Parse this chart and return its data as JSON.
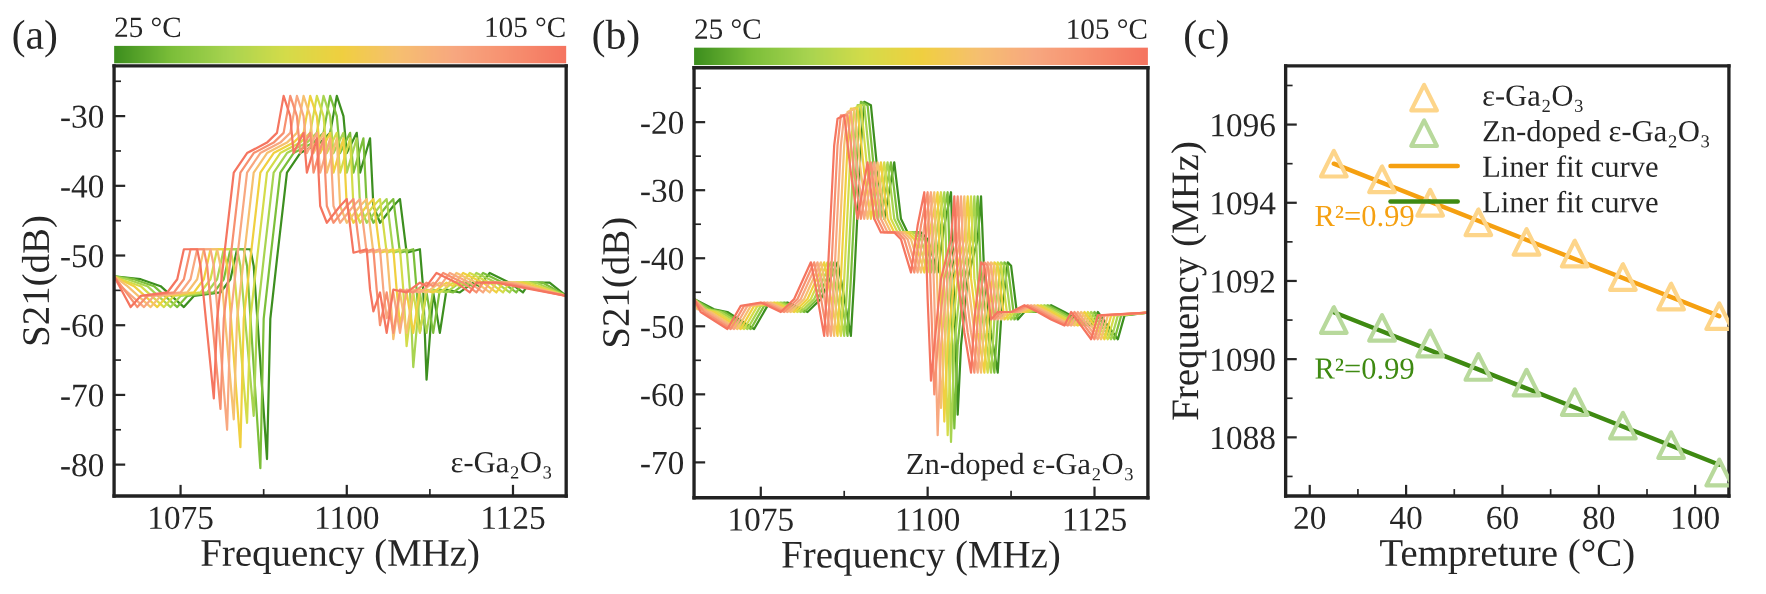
{
  "chart_data": [
    {
      "type": "line",
      "title": "(a)",
      "xlabel": "Frequency (MHz)",
      "ylabel": "S21(dB)",
      "xlim": [
        1065,
        1133
      ],
      "xticks": [
        1075,
        {
          "value": 1087.5,
          "label": null
        },
        1100,
        {
          "value": 1112.5,
          "label": null
        },
        1125
      ],
      "ylim": [
        -84.5,
        -22.8
      ],
      "yticks": [
        -80,
        {
          "value": -75,
          "label": null
        },
        -70,
        {
          "value": -65,
          "label": null
        },
        -60,
        {
          "value": -55,
          "label": null
        },
        -50,
        {
          "value": -45,
          "label": null
        },
        -40,
        {
          "value": -35,
          "label": null
        },
        -30,
        {
          "value": -25,
          "label": null
        }
      ],
      "annotations": [
        "25 °C",
        "105 °C",
        "ε-Ga₂O₃"
      ],
      "series": [
        {
          "color": "#3d8f1f",
          "x": [
            1065,
            1069,
            1072,
            1075.5,
            1077,
            1081,
            1082.5,
            1083.5,
            1085.5,
            1086,
            1088,
            1088.5,
            1089.5,
            1091,
            1093,
            1096,
            1097.5,
            1098.5,
            1099.5,
            1100,
            1101.5,
            1102,
            1103.5,
            1104,
            1105,
            1107,
            1108,
            1109,
            1111,
            1111.5,
            1112,
            1113,
            1114,
            1115,
            1117,
            1119,
            1120,
            1121.5,
            1124.5,
            1126.5,
            1127.5,
            1130.5,
            1133
          ],
          "values": [
            -53,
            -53.4,
            -54.4,
            -57.4,
            -55.8,
            -55.3,
            -53.4,
            -49.1,
            -49.1,
            -51.5,
            -79.2,
            -59.1,
            -50.5,
            -38.1,
            -35.3,
            -33.8,
            -32.4,
            -27.1,
            -30,
            -35.3,
            -32.4,
            -38.1,
            -33.2,
            -42.9,
            -45.3,
            -42.9,
            -41.9,
            -49.6,
            -49.1,
            -54.9,
            -67.8,
            -55.3,
            -61.1,
            -54.9,
            -55.3,
            -53.9,
            -54.4,
            -52.5,
            -53.9,
            -55.3,
            -53.9,
            -53.9,
            -55.8
          ]
        },
        {
          "color": "#7cbf3a",
          "x": [
            1065,
            1068,
            1071,
            1074.5,
            1076,
            1080,
            1081.5,
            1082.5,
            1084.5,
            1085,
            1087,
            1087.5,
            1088.5,
            1090,
            1092,
            1095,
            1096.5,
            1097.5,
            1098.5,
            1099,
            1100.5,
            1101,
            1102.5,
            1103,
            1104,
            1106,
            1107,
            1108,
            1110,
            1110.5,
            1111,
            1112,
            1113,
            1114,
            1116,
            1118,
            1119,
            1120.5,
            1123.5,
            1125.5,
            1126.5,
            1129.5,
            1133
          ],
          "values": [
            -53,
            -53.4,
            -54.4,
            -57.4,
            -55.8,
            -55.3,
            -53.4,
            -49.1,
            -49.1,
            -51.5,
            -80.5,
            -59.1,
            -50.5,
            -38.1,
            -35.3,
            -33.8,
            -32.4,
            -27.1,
            -30,
            -35.3,
            -32.4,
            -38.1,
            -33.2,
            -42.9,
            -45.3,
            -42.9,
            -41.9,
            -49.6,
            -49.1,
            -54.9,
            -61,
            -55.3,
            -61.1,
            -54.9,
            -55.3,
            -53.9,
            -54.4,
            -52.5,
            -53.9,
            -55.3,
            -53.9,
            -53.9,
            -55.8
          ]
        },
        {
          "color": "#a8d450",
          "x": [
            1065,
            1067,
            1070,
            1073.5,
            1075,
            1079,
            1080.5,
            1081.5,
            1083.5,
            1084,
            1086,
            1086.5,
            1087.5,
            1089,
            1091,
            1094,
            1095.5,
            1096.5,
            1097.5,
            1098,
            1099.5,
            1100,
            1101.5,
            1102,
            1103,
            1105,
            1106,
            1107,
            1109,
            1109.5,
            1110,
            1111,
            1112,
            1113,
            1115,
            1117,
            1118,
            1119.5,
            1122.5,
            1124.5,
            1125.5,
            1128.5,
            1133
          ],
          "values": [
            -53,
            -53.4,
            -54.4,
            -57.4,
            -55.8,
            -55.3,
            -53.4,
            -49.1,
            -49.1,
            -51.5,
            -73,
            -59.1,
            -50.5,
            -38.1,
            -35.3,
            -33.8,
            -32.4,
            -27.1,
            -30,
            -35.3,
            -32.4,
            -38.1,
            -33.2,
            -42.9,
            -45.3,
            -42.9,
            -41.9,
            -49.6,
            -49.1,
            -54.9,
            -66,
            -55.3,
            -61.1,
            -54.9,
            -55.3,
            -53.9,
            -54.4,
            -52.5,
            -53.9,
            -55.3,
            -53.9,
            -53.9,
            -55.8
          ]
        },
        {
          "color": "#d4dc4a",
          "x": [
            1065,
            1066,
            1069,
            1072.5,
            1074,
            1078,
            1079.5,
            1080.5,
            1082.5,
            1083,
            1085,
            1085.5,
            1086.5,
            1088,
            1090,
            1093,
            1094.5,
            1095.5,
            1096.5,
            1097,
            1098.5,
            1099,
            1100.5,
            1101,
            1102,
            1104,
            1105,
            1106,
            1108,
            1108.5,
            1109,
            1110,
            1111,
            1112,
            1114,
            1116,
            1117,
            1118.5,
            1121.5,
            1123.5,
            1124.5,
            1127.5,
            1133
          ],
          "values": [
            -53,
            -53.4,
            -54.4,
            -57.4,
            -55.8,
            -55.3,
            -53.4,
            -49.1,
            -49.1,
            -51.5,
            -74,
            -59.1,
            -50.5,
            -38.1,
            -35.3,
            -33.8,
            -32.4,
            -27.1,
            -30,
            -35.3,
            -32.4,
            -38.1,
            -33.2,
            -42.9,
            -45.3,
            -42.9,
            -41.9,
            -49.6,
            -49.1,
            -54.9,
            -63,
            -55.3,
            -61.1,
            -54.9,
            -55.3,
            -53.9,
            -54.4,
            -52.5,
            -53.9,
            -55.3,
            -53.9,
            -53.9,
            -55.8
          ]
        },
        {
          "color": "#f0d040",
          "x": [
            1065,
            1068,
            1071.5,
            1073,
            1077,
            1078.5,
            1079.5,
            1081.5,
            1082,
            1084,
            1084.5,
            1085.5,
            1087,
            1089,
            1092,
            1093.5,
            1094.5,
            1095.5,
            1096,
            1097.5,
            1098,
            1099.5,
            1100,
            1101,
            1103,
            1104,
            1105,
            1107,
            1107.5,
            1108,
            1109,
            1110,
            1111,
            1113,
            1115,
            1116,
            1117.5,
            1120.5,
            1122.5,
            1123.5,
            1126.5,
            1133
          ],
          "values": [
            -53,
            -54.4,
            -57.4,
            -55.8,
            -55.3,
            -53.4,
            -49.1,
            -49.1,
            -51.5,
            -77.5,
            -59.1,
            -50.5,
            -38.1,
            -35.3,
            -33.8,
            -32.4,
            -27.1,
            -30,
            -35.3,
            -32.4,
            -38.1,
            -33.2,
            -42.9,
            -45.3,
            -42.9,
            -41.9,
            -49.6,
            -49.1,
            -54.9,
            -60,
            -55.3,
            -61.1,
            -54.9,
            -55.3,
            -53.9,
            -54.4,
            -52.5,
            -53.9,
            -55.3,
            -53.9,
            -53.9,
            -55.8
          ]
        },
        {
          "color": "#f6c070",
          "x": [
            1065,
            1067,
            1070.5,
            1072,
            1076,
            1077.5,
            1078.5,
            1080.5,
            1081,
            1083,
            1083.5,
            1084.5,
            1086,
            1088,
            1091,
            1092.5,
            1093.5,
            1094.5,
            1095,
            1096.5,
            1097,
            1098.5,
            1099,
            1100,
            1102,
            1103,
            1104,
            1106,
            1106.5,
            1107,
            1108,
            1109,
            1110,
            1112,
            1114,
            1115,
            1116.5,
            1119.5,
            1121.5,
            1122.5,
            1125.5,
            1133
          ],
          "values": [
            -53,
            -54.4,
            -57.4,
            -55.8,
            -55.3,
            -53.4,
            -49.1,
            -49.1,
            -51.5,
            -73.5,
            -59.1,
            -50.5,
            -38.1,
            -35.3,
            -33.8,
            -32.4,
            -27.1,
            -30,
            -35.3,
            -32.4,
            -38.1,
            -33.2,
            -42.9,
            -45.3,
            -42.9,
            -41.9,
            -49.6,
            -49.1,
            -54.9,
            -62,
            -55.3,
            -61.1,
            -54.9,
            -55.3,
            -53.9,
            -54.4,
            -52.5,
            -53.9,
            -55.3,
            -53.9,
            -53.9,
            -55.8
          ]
        },
        {
          "color": "#f8a880",
          "x": [
            1065,
            1066,
            1069.5,
            1071,
            1075,
            1076.5,
            1077.5,
            1079.5,
            1080,
            1082,
            1082.5,
            1083.5,
            1085,
            1087,
            1090,
            1091.5,
            1092.5,
            1093.5,
            1094,
            1095.5,
            1096,
            1097.5,
            1098,
            1099,
            1101,
            1102,
            1103,
            1105,
            1105.5,
            1106,
            1107,
            1108,
            1109,
            1111,
            1113,
            1114,
            1115.5,
            1118.5,
            1120.5,
            1121.5,
            1124.5,
            1133
          ],
          "values": [
            -53,
            -54.4,
            -57.4,
            -55.8,
            -55.3,
            -53.4,
            -49.1,
            -49.1,
            -51.5,
            -75,
            -59.1,
            -50.5,
            -38.1,
            -35.3,
            -33.8,
            -32.4,
            -27.1,
            -30,
            -35.3,
            -32.4,
            -38.1,
            -33.2,
            -42.9,
            -45.3,
            -42.9,
            -41.9,
            -49.6,
            -49.1,
            -54.9,
            -59,
            -55.3,
            -61.1,
            -54.9,
            -55.3,
            -53.9,
            -54.4,
            -52.5,
            -53.9,
            -55.3,
            -53.9,
            -53.9,
            -55.8
          ]
        },
        {
          "color": "#f79070",
          "x": [
            1065,
            1068.5,
            1070,
            1074,
            1075.5,
            1076.5,
            1078.5,
            1079,
            1081,
            1081.5,
            1082.5,
            1084,
            1086,
            1089,
            1090.5,
            1091.5,
            1092.5,
            1093,
            1094.5,
            1095,
            1096.5,
            1097,
            1098,
            1100,
            1101,
            1102,
            1104,
            1104.5,
            1105,
            1106,
            1107,
            1108,
            1110,
            1112,
            1113,
            1114.5,
            1117.5,
            1119.5,
            1120.5,
            1123.5,
            1133
          ],
          "values": [
            -53,
            -57.4,
            -55.8,
            -55.3,
            -53.4,
            -49.1,
            -49.1,
            -51.5,
            -72,
            -59.1,
            -50.5,
            -38.1,
            -35.3,
            -33.8,
            -32.4,
            -27.1,
            -30,
            -35.3,
            -32.4,
            -38.1,
            -33.2,
            -42.9,
            -45.3,
            -42.9,
            -41.9,
            -49.6,
            -49.1,
            -54.9,
            -60,
            -55.3,
            -61.1,
            -54.9,
            -55.3,
            -53.9,
            -54.4,
            -52.5,
            -53.9,
            -55.3,
            -53.9,
            -53.9,
            -55.8
          ]
        },
        {
          "color": "#f57560",
          "x": [
            1065,
            1067.5,
            1069,
            1073,
            1074.5,
            1075.5,
            1077.5,
            1078,
            1080,
            1080.5,
            1081.5,
            1083,
            1085,
            1088,
            1089.5,
            1090.5,
            1091.5,
            1092,
            1093.5,
            1094,
            1095.5,
            1096,
            1097,
            1099,
            1100,
            1101,
            1103,
            1103.5,
            1104,
            1105,
            1106,
            1107,
            1109,
            1111,
            1112,
            1113.5,
            1116.5,
            1118.5,
            1119.5,
            1122.5,
            1133
          ],
          "values": [
            -53,
            -57.4,
            -55.8,
            -55.3,
            -53.4,
            -49.1,
            -49.1,
            -51.5,
            -70.5,
            -59.1,
            -50.5,
            -38.1,
            -35.3,
            -33.8,
            -32.4,
            -27.1,
            -30,
            -35.3,
            -32.4,
            -38.1,
            -33.2,
            -42.9,
            -45.3,
            -42.9,
            -41.9,
            -49.6,
            -49.1,
            -54.9,
            -58,
            -55.3,
            -61.1,
            -54.9,
            -55.3,
            -53.9,
            -54.4,
            -52.5,
            -53.9,
            -55.3,
            -53.9,
            -53.9,
            -55.8
          ]
        }
      ]
    },
    {
      "type": "line",
      "title": "(b)",
      "xlabel": "Frequency (MHz)",
      "ylabel": "S21(dB)",
      "xlim": [
        1065,
        1133
      ],
      "xticks": [
        1075,
        {
          "value": 1087.5,
          "label": null
        },
        1100,
        {
          "value": 1112.5,
          "label": null
        },
        1125
      ],
      "ylim": [
        -75.2,
        -12
      ],
      "yticks": [
        -70,
        {
          "value": -65,
          "label": null
        },
        -60,
        {
          "value": -55,
          "label": null
        },
        -50,
        {
          "value": -45,
          "label": null
        },
        -40,
        {
          "value": -35,
          "label": null
        },
        -30,
        {
          "value": -25,
          "label": null
        },
        -20,
        {
          "value": -15,
          "label": null
        }
      ],
      "annotations": [
        "25 °C",
        "105 °C",
        "Zn-doped ε-Ga₂O₃"
      ],
      "series": [
        {
          "color": "#3d8f1f",
          "x": [
            1065,
            1068,
            1070,
            1074,
            1076,
            1079,
            1082,
            1084,
            1086.5,
            1087,
            1088.5,
            1089,
            1090,
            1090.5,
            1091.5,
            1092.5,
            1093.5,
            1095,
            1096,
            1097,
            1099,
            1100,
            1101.5,
            1102.5,
            1103.5,
            1104,
            1104.5,
            1105,
            1106,
            1107.5,
            1108,
            1108.5,
            1109.5,
            1110.5,
            1111,
            1112,
            1112.5,
            1113.5,
            1114.5,
            1116.5,
            1118.5,
            1120.5,
            1122.5,
            1124.5,
            1125.5,
            1128.5,
            1129.5,
            1133
          ],
          "values": [
            -46,
            -47.5,
            -47.9,
            -50.4,
            -47,
            -46.5,
            -47.9,
            -46,
            -40.6,
            -43,
            -51.4,
            -43,
            -23.4,
            -17,
            -17.5,
            -27.4,
            -34.2,
            -25.9,
            -34.2,
            -36.2,
            -36.2,
            -37.2,
            -42.1,
            -35.2,
            -30.3,
            -46,
            -63,
            -52.8,
            -43,
            -37.2,
            -30.9,
            -43,
            -50.9,
            -56.8,
            -49,
            -40.6,
            -41.1,
            -49,
            -47.9,
            -47.9,
            -46.9,
            -47.9,
            -49,
            -49.9,
            -47.9,
            -51.9,
            -48.4,
            -48
          ]
        },
        {
          "color": "#7cbf3a",
          "x": [
            1065,
            1067.5,
            1069.5,
            1073.5,
            1075.5,
            1078.5,
            1081.5,
            1083.5,
            1086,
            1086.5,
            1088,
            1088.5,
            1089.5,
            1090,
            1091,
            1092,
            1093,
            1094.5,
            1095.5,
            1096.5,
            1098.5,
            1099.5,
            1101,
            1102,
            1103,
            1103.5,
            1104,
            1104.5,
            1105.5,
            1107,
            1107.5,
            1108,
            1109,
            1110,
            1110.5,
            1111.5,
            1112,
            1113,
            1114,
            1116,
            1118,
            1120,
            1122,
            1124,
            1125,
            1128,
            1129,
            1133
          ],
          "values": [
            -46,
            -47.5,
            -47.9,
            -50.4,
            -47,
            -46.5,
            -47.9,
            -46,
            -40.6,
            -43,
            -51.4,
            -43,
            -23.4,
            -17,
            -17.5,
            -27.4,
            -34.2,
            -25.9,
            -34.2,
            -36.2,
            -36.2,
            -37.2,
            -42.1,
            -35.2,
            -30.3,
            -46,
            -65,
            -52.8,
            -43,
            -37.2,
            -30.9,
            -43,
            -50.9,
            -56.8,
            -49,
            -40.6,
            -41.1,
            -49,
            -47.9,
            -47.9,
            -46.9,
            -47.9,
            -49,
            -49.9,
            -47.9,
            -51.9,
            -48.4,
            -48
          ]
        },
        {
          "color": "#a8d450",
          "x": [
            1065,
            1067,
            1069,
            1073,
            1075,
            1078,
            1081,
            1083,
            1085.5,
            1086,
            1087.5,
            1088,
            1089,
            1089.5,
            1090.5,
            1091.5,
            1092.5,
            1094,
            1095,
            1096,
            1098,
            1099,
            1100.5,
            1101.5,
            1102.5,
            1103,
            1103.5,
            1104,
            1105,
            1106.5,
            1107,
            1107.5,
            1108.5,
            1109.5,
            1110,
            1111,
            1111.5,
            1112.5,
            1113.5,
            1115.5,
            1117.5,
            1119.5,
            1121.5,
            1123.5,
            1124.5,
            1127.5,
            1128.5,
            1133
          ],
          "values": [
            -46,
            -47.5,
            -47.9,
            -50.4,
            -47,
            -46.5,
            -47.9,
            -46,
            -40.6,
            -43,
            -51.4,
            -43,
            -23.4,
            -17.5,
            -17.5,
            -27.4,
            -34.2,
            -25.9,
            -34.2,
            -36.2,
            -36.2,
            -37.2,
            -42.1,
            -35.2,
            -30.3,
            -46,
            -67,
            -52.8,
            -43,
            -37.2,
            -30.9,
            -43,
            -50.9,
            -56.8,
            -49,
            -40.6,
            -41.1,
            -49,
            -47.9,
            -47.9,
            -46.9,
            -47.9,
            -49,
            -49.9,
            -47.9,
            -51.9,
            -48.4,
            -48
          ]
        },
        {
          "color": "#d4dc4a",
          "x": [
            1065,
            1066.5,
            1068.5,
            1072.5,
            1074.5,
            1077.5,
            1080.5,
            1082.5,
            1085,
            1085.5,
            1087,
            1087.5,
            1088.5,
            1089,
            1090,
            1091,
            1092,
            1093.5,
            1094.5,
            1095.5,
            1097.5,
            1098.5,
            1100,
            1101,
            1102,
            1102.5,
            1103,
            1103.5,
            1104.5,
            1106,
            1106.5,
            1107,
            1108,
            1109,
            1109.5,
            1110.5,
            1111,
            1112,
            1113,
            1115,
            1117,
            1119,
            1121,
            1123,
            1124,
            1127,
            1128,
            1133
          ],
          "values": [
            -46,
            -47.5,
            -47.9,
            -50.4,
            -47,
            -46.5,
            -47.9,
            -46,
            -40.6,
            -43,
            -51.4,
            -43,
            -23.4,
            -18,
            -17.5,
            -27.4,
            -34.2,
            -25.9,
            -34.2,
            -36.2,
            -36.2,
            -37.2,
            -42.1,
            -35.2,
            -30.3,
            -46,
            -66,
            -52.8,
            -43,
            -37.2,
            -30.9,
            -43,
            -50.9,
            -56.8,
            -49,
            -40.6,
            -41.1,
            -49,
            -47.9,
            -47.9,
            -46.9,
            -47.9,
            -49,
            -49.9,
            -47.9,
            -51.9,
            -48.4,
            -48
          ]
        },
        {
          "color": "#f0d040",
          "x": [
            1065,
            1066,
            1068,
            1072,
            1074,
            1077,
            1080,
            1082,
            1084.5,
            1085,
            1086.5,
            1087,
            1088,
            1088.5,
            1089.5,
            1090.5,
            1091.5,
            1093,
            1094,
            1095,
            1097,
            1098,
            1099.5,
            1100.5,
            1101.5,
            1102,
            1102.5,
            1103,
            1104,
            1105.5,
            1106,
            1106.5,
            1107.5,
            1108.5,
            1109,
            1110,
            1110.5,
            1111.5,
            1112.5,
            1114.5,
            1116.5,
            1118.5,
            1120.5,
            1122.5,
            1123.5,
            1126.5,
            1127.5,
            1133
          ],
          "values": [
            -46,
            -47.5,
            -47.9,
            -50.4,
            -47,
            -46.5,
            -47.9,
            -46,
            -40.6,
            -43,
            -51.4,
            -43,
            -23.4,
            -18,
            -18,
            -27.4,
            -34.2,
            -25.9,
            -34.2,
            -36.2,
            -36.2,
            -37.2,
            -42.1,
            -35.2,
            -30.3,
            -46,
            -64,
            -52.8,
            -43,
            -37.2,
            -30.9,
            -43,
            -50.9,
            -56.8,
            -49,
            -40.6,
            -41.1,
            -49,
            -47.9,
            -47.9,
            -46.9,
            -47.9,
            -49,
            -49.9,
            -47.9,
            -51.9,
            -48.4,
            -48
          ]
        },
        {
          "color": "#f6c070",
          "x": [
            1065,
            1065.5,
            1067.5,
            1071.5,
            1073.5,
            1076.5,
            1079.5,
            1081.5,
            1084,
            1084.5,
            1086,
            1086.5,
            1087.5,
            1088,
            1089,
            1090,
            1091,
            1092.5,
            1093.5,
            1094.5,
            1096.5,
            1097.5,
            1099,
            1100,
            1101,
            1101.5,
            1102,
            1102.5,
            1103.5,
            1105,
            1105.5,
            1106,
            1107,
            1108,
            1108.5,
            1109.5,
            1110,
            1111,
            1112,
            1114,
            1116,
            1118,
            1120,
            1122,
            1123,
            1126,
            1127,
            1133
          ],
          "values": [
            -46,
            -47.5,
            -47.9,
            -50.4,
            -47,
            -46.5,
            -47.9,
            -46,
            -40.6,
            -43,
            -51.4,
            -43,
            -23.4,
            -18.5,
            -18,
            -27.4,
            -34.2,
            -25.9,
            -34.2,
            -36.2,
            -36.2,
            -37.2,
            -42.1,
            -35.2,
            -30.3,
            -46,
            -62,
            -52.8,
            -43,
            -37.2,
            -30.9,
            -43,
            -50.9,
            -56.8,
            -49,
            -40.6,
            -41.1,
            -49,
            -47.9,
            -47.9,
            -46.9,
            -47.9,
            -49,
            -49.9,
            -47.9,
            -51.9,
            -48.4,
            -48
          ]
        },
        {
          "color": "#f8a880",
          "x": [
            1065,
            1067,
            1071,
            1073,
            1076,
            1079,
            1081,
            1083.5,
            1084,
            1085.5,
            1086,
            1087,
            1087.5,
            1088.5,
            1089.5,
            1090.5,
            1092,
            1093,
            1094,
            1096,
            1097,
            1098.5,
            1099.5,
            1100.5,
            1101,
            1101.5,
            1102,
            1103,
            1104.5,
            1105,
            1105.5,
            1106.5,
            1107.5,
            1108,
            1109,
            1109.5,
            1110.5,
            1111.5,
            1113.5,
            1115.5,
            1117.5,
            1119.5,
            1121.5,
            1122.5,
            1125.5,
            1126.5,
            1133
          ],
          "values": [
            -46,
            -47.9,
            -50.4,
            -47,
            -46.5,
            -47.9,
            -46,
            -40.6,
            -43,
            -51.4,
            -43,
            -23.4,
            -19,
            -18.5,
            -27.4,
            -34.2,
            -25.9,
            -34.2,
            -36.2,
            -36.2,
            -37.2,
            -42.1,
            -35.2,
            -30.3,
            -46,
            -66,
            -52.8,
            -43,
            -37.2,
            -30.9,
            -43,
            -50.9,
            -56.8,
            -49,
            -40.6,
            -41.1,
            -49,
            -47.9,
            -47.9,
            -46.9,
            -47.9,
            -49,
            -49.9,
            -47.9,
            -51.9,
            -48.4,
            -48
          ]
        },
        {
          "color": "#f79070",
          "x": [
            1065,
            1066.5,
            1070.5,
            1072.5,
            1075.5,
            1078.5,
            1080.5,
            1083,
            1083.5,
            1085,
            1085.5,
            1086.5,
            1087,
            1088,
            1089,
            1090,
            1091.5,
            1092.5,
            1093.5,
            1095.5,
            1096.5,
            1098,
            1099,
            1100,
            1100.5,
            1101,
            1101.5,
            1102.5,
            1104,
            1104.5,
            1105,
            1106,
            1107,
            1107.5,
            1108.5,
            1109,
            1110,
            1111,
            1113,
            1115,
            1117,
            1119,
            1121,
            1122,
            1125,
            1126,
            1133
          ],
          "values": [
            -46,
            -47.9,
            -50.4,
            -47,
            -46.5,
            -47.9,
            -46,
            -40.6,
            -43,
            -51.4,
            -43,
            -23.4,
            -19,
            -19,
            -27.4,
            -34.2,
            -25.9,
            -34.2,
            -36.2,
            -36.2,
            -37.2,
            -42.1,
            -35.2,
            -30.3,
            -46,
            -60,
            -52.8,
            -43,
            -37.2,
            -30.9,
            -43,
            -50.9,
            -56.8,
            -49,
            -40.6,
            -41.1,
            -49,
            -47.9,
            -47.9,
            -46.9,
            -47.9,
            -49,
            -49.9,
            -47.9,
            -51.9,
            -48.4,
            -48
          ]
        },
        {
          "color": "#f57560",
          "x": [
            1065,
            1066,
            1070,
            1072,
            1075,
            1078,
            1080,
            1082.5,
            1083,
            1084.5,
            1085,
            1086,
            1086.5,
            1087.5,
            1088.5,
            1089.5,
            1091,
            1092,
            1093,
            1095,
            1096,
            1097.5,
            1098.5,
            1099.5,
            1100,
            1100.5,
            1101,
            1102,
            1103.5,
            1104,
            1104.5,
            1105.5,
            1106.5,
            1107,
            1108,
            1108.5,
            1109.5,
            1110.5,
            1112.5,
            1114.5,
            1116.5,
            1118.5,
            1120.5,
            1121.5,
            1124.5,
            1125.5,
            1133
          ],
          "values": [
            -46,
            -47.9,
            -50.4,
            -47,
            -46.5,
            -47.9,
            -46,
            -40.6,
            -43,
            -51.4,
            -43,
            -23.4,
            -19.5,
            -19,
            -27.4,
            -34.2,
            -25.9,
            -34.2,
            -36.2,
            -36.2,
            -37.2,
            -42.1,
            -35.2,
            -30.3,
            -46,
            -58,
            -52.8,
            -43,
            -37.2,
            -30.9,
            -43,
            -50.9,
            -56.8,
            -49,
            -40.6,
            -41.1,
            -49,
            -47.9,
            -47.9,
            -46.9,
            -47.9,
            -49,
            -49.9,
            -47.9,
            -51.9,
            -48.4,
            -48
          ]
        }
      ]
    },
    {
      "type": "scatter",
      "title": "(c)",
      "xlabel": "Tempreture (°C)",
      "ylabel": "Frequency (MHz)",
      "xlim": [
        15,
        107
      ],
      "xticks": [
        20,
        {
          "value": 30,
          "label": null
        },
        40,
        {
          "value": 50,
          "label": null
        },
        60,
        {
          "value": 70,
          "label": null
        },
        80,
        {
          "value": 90,
          "label": null
        },
        100
      ],
      "ylim": [
        1086.5,
        1097.5
      ],
      "yticks": [
        {
          "value": 1087,
          "label": null
        },
        1088,
        {
          "value": 1089,
          "label": null
        },
        1090,
        {
          "value": 1091,
          "label": null
        },
        1092,
        {
          "value": 1093,
          "label": null
        },
        1094,
        {
          "value": 1095,
          "label": null
        },
        1096,
        {
          "value": 1097,
          "label": null
        }
      ],
      "marker": "triangle",
      "legend": "top right",
      "annotations": [
        "R²=0.99",
        "R²=0.99"
      ],
      "series": [
        {
          "name": "ε-Ga₂O₃",
          "type": "scatter",
          "color": "#fdd58a",
          "x": [
            25,
            35,
            45,
            55,
            65,
            75,
            85,
            95,
            105
          ],
          "values": [
            1095.0,
            1094.6,
            1094.0,
            1093.5,
            1093.0,
            1092.7,
            1092.1,
            1091.6,
            1091.1
          ]
        },
        {
          "name": "Zn-doped ε-Ga₂O₃",
          "type": "scatter",
          "color": "#b8d99c",
          "x": [
            25,
            35,
            45,
            55,
            65,
            75,
            85,
            95,
            105
          ],
          "values": [
            1091.0,
            1090.8,
            1090.4,
            1089.8,
            1089.4,
            1088.9,
            1088.3,
            1087.8,
            1087.1
          ]
        },
        {
          "name": "Liner fit curve",
          "type": "line",
          "marker": "none",
          "color": "#f5a011",
          "x": [
            25,
            105
          ],
          "values": [
            1095.0,
            1091.1
          ]
        },
        {
          "name": "Liner fit curve",
          "type": "line",
          "marker": "none",
          "color": "#3f8a12",
          "x": [
            25,
            105
          ],
          "values": [
            1091.2,
            1087.3
          ]
        }
      ]
    }
  ]
}
